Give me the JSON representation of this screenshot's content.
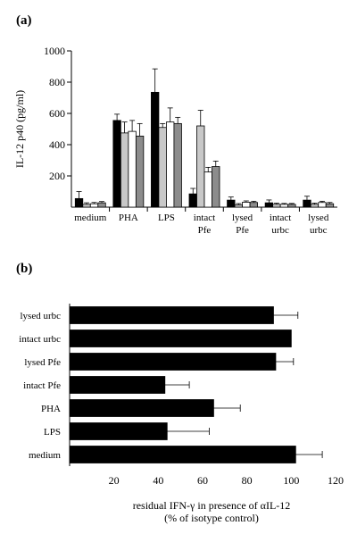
{
  "chart_data": [
    {
      "panel": "(a)",
      "type": "bar",
      "ylabel": "IL-12 p40 (pg/ml)",
      "ylim": [
        0,
        1000
      ],
      "yticks": [
        200,
        400,
        600,
        800,
        1000
      ],
      "grid": false,
      "legend": "none",
      "categories": [
        [
          "medium"
        ],
        [
          "PHA"
        ],
        [
          "LPS"
        ],
        [
          "intact",
          "Pfe"
        ],
        [
          "lysed",
          "Pfe"
        ],
        [
          "intact",
          "urbc"
        ],
        [
          "lysed",
          "urbc"
        ]
      ],
      "colors": [
        "#000000",
        "#c8c8c8",
        "#ffffff",
        "#8c8c8c"
      ],
      "series": [
        {
          "values": [
            55,
            555,
            735,
            85,
            45,
            28,
            45
          ],
          "errors": [
            45,
            40,
            150,
            35,
            20,
            18,
            25
          ]
        },
        {
          "values": [
            18,
            475,
            510,
            520,
            15,
            18,
            18
          ],
          "errors": [
            10,
            70,
            25,
            100,
            8,
            8,
            8
          ]
        },
        {
          "values": [
            22,
            485,
            545,
            225,
            32,
            18,
            30
          ],
          "errors": [
            8,
            70,
            90,
            30,
            8,
            6,
            8
          ]
        },
        {
          "values": [
            28,
            455,
            535,
            260,
            30,
            18,
            22
          ],
          "errors": [
            8,
            80,
            40,
            35,
            8,
            6,
            8
          ]
        }
      ]
    },
    {
      "panel": "(b)",
      "type": "bar",
      "orientation": "horizontal",
      "xlabel_line1": "residual IFN-γ in presence of αIL-12",
      "xlabel_line2": "(% of isotype control)",
      "xlim": [
        0,
        120
      ],
      "xticks": [
        20,
        40,
        60,
        80,
        100,
        120
      ],
      "grid": false,
      "categories": [
        "lysed urbc",
        "intact urbc",
        "lysed Pfe",
        "intact Pfe",
        "PHA",
        "LPS",
        "medium"
      ],
      "values": [
        92,
        100,
        93,
        43,
        65,
        44,
        102
      ],
      "errors": [
        11,
        0,
        8,
        11,
        12,
        19,
        12
      ],
      "color": "#000000"
    }
  ]
}
